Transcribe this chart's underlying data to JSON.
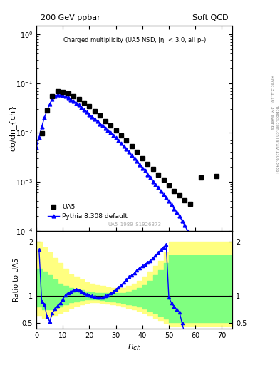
{
  "title_left": "200 GeV ppbar",
  "title_right": "Soft QCD",
  "main_title": "Charged multiplicity (UA5 NSD, |η| < 3.0, all p_{T})",
  "xlabel": "$n_{ch}$",
  "ylabel_main": "dσ/dn_{ch}",
  "ylabel_ratio": "Ratio to UA5",
  "watermark": "UA5_1989_S1926373",
  "right_label": "Rivet 3.1.10,  3M events",
  "right_label2": "mcplots.cern.ch [arXiv:1306.3436]",
  "ua5_x": [
    2,
    4,
    6,
    8,
    10,
    12,
    14,
    16,
    18,
    20,
    22,
    24,
    26,
    28,
    30,
    32,
    34,
    36,
    38,
    40,
    42,
    44,
    46,
    48,
    50,
    52,
    54,
    56,
    58,
    62,
    68
  ],
  "ua5_y": [
    0.0095,
    0.028,
    0.055,
    0.068,
    0.067,
    0.062,
    0.055,
    0.048,
    0.04,
    0.034,
    0.027,
    0.022,
    0.017,
    0.014,
    0.011,
    0.0088,
    0.0068,
    0.0052,
    0.004,
    0.003,
    0.0023,
    0.0018,
    0.0014,
    0.0011,
    0.00085,
    0.00065,
    0.00052,
    0.00042,
    0.00035,
    0.0012,
    0.0013
  ],
  "pythia_x": [
    0,
    1,
    2,
    3,
    4,
    5,
    6,
    7,
    8,
    9,
    10,
    11,
    12,
    13,
    14,
    15,
    16,
    17,
    18,
    19,
    20,
    21,
    22,
    23,
    24,
    25,
    26,
    27,
    28,
    29,
    30,
    31,
    32,
    33,
    34,
    35,
    36,
    37,
    38,
    39,
    40,
    41,
    42,
    43,
    44,
    45,
    46,
    47,
    48,
    49,
    50,
    51,
    52,
    53,
    54,
    55,
    56,
    57,
    58,
    59,
    60,
    61,
    62,
    63,
    64,
    65
  ],
  "pythia_y": [
    0.005,
    0.008,
    0.013,
    0.02,
    0.028,
    0.038,
    0.048,
    0.055,
    0.058,
    0.058,
    0.057,
    0.054,
    0.051,
    0.047,
    0.043,
    0.039,
    0.036,
    0.032,
    0.029,
    0.026,
    0.023,
    0.021,
    0.019,
    0.017,
    0.015,
    0.014,
    0.012,
    0.011,
    0.01,
    0.0088,
    0.0078,
    0.0068,
    0.006,
    0.0052,
    0.0046,
    0.004,
    0.0034,
    0.003,
    0.0026,
    0.0022,
    0.0019,
    0.0017,
    0.0014,
    0.0012,
    0.001,
    0.00088,
    0.00076,
    0.00065,
    0.00055,
    0.00047,
    0.0004,
    0.00034,
    0.00028,
    0.00024,
    0.0002,
    0.00016,
    0.00013,
    0.0001,
    8.2e-05,
    6.6e-05,
    5.2e-05,
    4e-05,
    3e-05,
    2.2e-05,
    1.5e-05,
    1e-05
  ],
  "ratio_x": [
    1,
    2,
    3,
    4,
    5,
    6,
    7,
    8,
    9,
    10,
    11,
    12,
    13,
    14,
    15,
    16,
    17,
    18,
    19,
    20,
    21,
    22,
    23,
    24,
    25,
    26,
    27,
    28,
    29,
    30,
    31,
    32,
    33,
    34,
    35,
    36,
    37,
    38,
    39,
    40,
    41,
    42,
    43,
    44,
    45,
    46,
    47,
    48,
    49,
    50,
    51,
    52,
    53,
    54,
    55,
    56,
    57,
    58,
    59,
    60,
    61,
    62,
    63,
    64,
    65
  ],
  "ratio_y": [
    1.85,
    0.9,
    0.85,
    0.62,
    0.53,
    0.68,
    0.76,
    0.82,
    0.87,
    0.94,
    1.02,
    1.06,
    1.08,
    1.1,
    1.12,
    1.1,
    1.08,
    1.06,
    1.03,
    1.01,
    1.0,
    0.99,
    0.98,
    0.97,
    0.98,
    1.0,
    1.02,
    1.05,
    1.08,
    1.12,
    1.16,
    1.2,
    1.25,
    1.3,
    1.35,
    1.38,
    1.42,
    1.48,
    1.52,
    1.55,
    1.58,
    1.62,
    1.65,
    1.7,
    1.75,
    1.8,
    1.85,
    1.9,
    1.95,
    0.97,
    0.87,
    0.8,
    0.75,
    0.7,
    0.5,
    0.3,
    0.2,
    0.15,
    0.12,
    0.1,
    0.08,
    0.07,
    0.06,
    0.05,
    0.04
  ],
  "yellow_band_x": [
    0,
    2,
    4,
    6,
    8,
    10,
    12,
    14,
    16,
    18,
    20,
    22,
    24,
    26,
    28,
    30,
    32,
    34,
    36,
    38,
    40,
    42,
    44,
    46,
    48,
    50,
    52,
    54,
    56,
    58,
    60,
    62,
    64,
    66,
    68,
    70,
    74
  ],
  "yellow_band_lo": [
    0.65,
    0.6,
    0.62,
    0.65,
    0.68,
    0.72,
    0.78,
    0.82,
    0.85,
    0.87,
    0.88,
    0.88,
    0.87,
    0.86,
    0.85,
    0.83,
    0.8,
    0.78,
    0.75,
    0.72,
    0.68,
    0.65,
    0.6,
    0.55,
    0.5,
    0.45,
    0.45,
    0.45,
    0.45,
    0.45,
    0.45,
    0.45,
    0.45,
    0.45,
    0.45,
    0.45,
    0.45
  ],
  "yellow_band_hi": [
    2.0,
    1.9,
    1.8,
    1.7,
    1.6,
    1.5,
    1.4,
    1.35,
    1.3,
    1.25,
    1.22,
    1.2,
    1.18,
    1.16,
    1.15,
    1.14,
    1.15,
    1.18,
    1.22,
    1.28,
    1.35,
    1.45,
    1.55,
    1.65,
    1.8,
    2.0,
    2.0,
    2.0,
    2.0,
    2.0,
    2.0,
    2.0,
    2.0,
    2.0,
    2.0,
    2.0,
    2.0
  ],
  "green_band_x": [
    0,
    2,
    4,
    6,
    8,
    10,
    12,
    14,
    16,
    18,
    20,
    22,
    24,
    26,
    28,
    30,
    32,
    34,
    36,
    38,
    40,
    42,
    44,
    46,
    48,
    50,
    52,
    54,
    56,
    58,
    60,
    62,
    64,
    66,
    68,
    70,
    74
  ],
  "green_band_lo": [
    0.8,
    0.75,
    0.75,
    0.78,
    0.8,
    0.85,
    0.88,
    0.9,
    0.92,
    0.93,
    0.93,
    0.93,
    0.92,
    0.91,
    0.9,
    0.88,
    0.87,
    0.85,
    0.83,
    0.8,
    0.77,
    0.73,
    0.68,
    0.63,
    0.58,
    0.52,
    0.52,
    0.52,
    0.52,
    0.52,
    0.52,
    0.52,
    0.52,
    0.52,
    0.52,
    0.52,
    0.52
  ],
  "green_band_hi": [
    1.5,
    1.45,
    1.38,
    1.3,
    1.22,
    1.18,
    1.14,
    1.12,
    1.1,
    1.08,
    1.07,
    1.06,
    1.06,
    1.05,
    1.05,
    1.05,
    1.06,
    1.08,
    1.11,
    1.15,
    1.2,
    1.28,
    1.38,
    1.48,
    1.6,
    1.75,
    1.75,
    1.75,
    1.75,
    1.75,
    1.75,
    1.75,
    1.75,
    1.75,
    1.75,
    1.75,
    1.75
  ],
  "ua5_color": "black",
  "pythia_color": "blue",
  "yellow_color": "#ffff80",
  "green_color": "#80ff80",
  "xlim_main": [
    0,
    74
  ],
  "ylim_main_log": [
    0.0001,
    1.5
  ],
  "xlim_ratio": [
    0,
    74
  ],
  "ylim_ratio": [
    0.4,
    2.2
  ]
}
